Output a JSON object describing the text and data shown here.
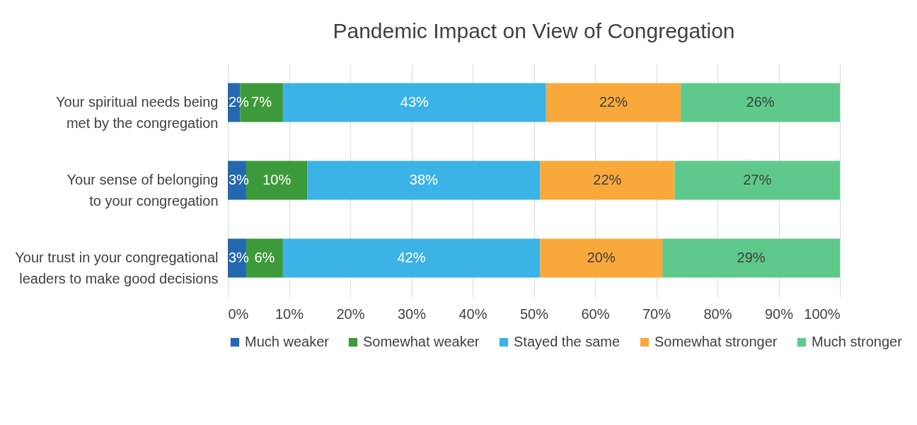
{
  "chart_data": {
    "type": "bar",
    "orientation": "horizontal",
    "stacked": true,
    "title": "Pandemic Impact on View of Congregation",
    "categories": [
      "Your spiritual needs being met by the congregation",
      "Your sense of belonging to your congregation",
      "Your trust in your congregational leaders to make good decisions"
    ],
    "series": [
      {
        "name": "Much weaker",
        "color": "#2469b0",
        "values": [
          2,
          3,
          3
        ]
      },
      {
        "name": "Somewhat weaker",
        "color": "#3d9a3a",
        "values": [
          7,
          10,
          6
        ]
      },
      {
        "name": "Stayed the same",
        "color": "#3cb3e6",
        "values": [
          43,
          38,
          42
        ]
      },
      {
        "name": "Somewhat stronger",
        "color": "#f9a93b",
        "values": [
          22,
          22,
          20
        ]
      },
      {
        "name": "Much stronger",
        "color": "#5ec98b",
        "values": [
          26,
          27,
          29
        ]
      }
    ],
    "xlim": [
      0,
      100
    ],
    "xticks": [
      {
        "value": 0,
        "label": "0%"
      },
      {
        "value": 10,
        "label": "10%"
      },
      {
        "value": 20,
        "label": "20%"
      },
      {
        "value": 30,
        "label": "30%"
      },
      {
        "value": 40,
        "label": "40%"
      },
      {
        "value": 50,
        "label": "50%"
      },
      {
        "value": 60,
        "label": "60%"
      },
      {
        "value": 70,
        "label": "70%"
      },
      {
        "value": 80,
        "label": "80%"
      },
      {
        "value": 90,
        "label": "90%"
      },
      {
        "value": 100,
        "label": "100%"
      }
    ],
    "value_labels": [
      [
        "2%",
        "3%",
        "3%"
      ],
      [
        "7%",
        "10%",
        "6%"
      ],
      [
        "43%",
        "38%",
        "42%"
      ],
      [
        "22%",
        "22%",
        "20%"
      ],
      [
        "26%",
        "27%",
        "29%"
      ]
    ],
    "grid": "x",
    "legend": "bottom"
  }
}
